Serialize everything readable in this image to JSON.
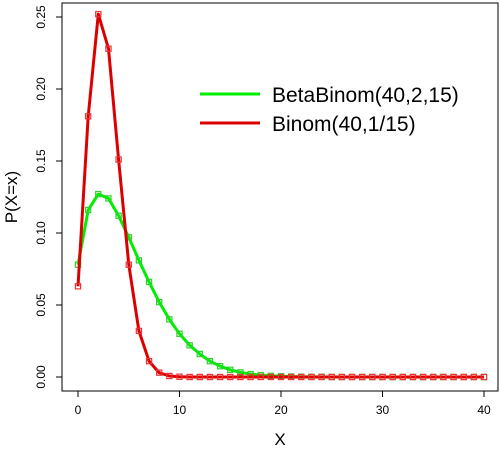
{
  "chart_data": {
    "type": "line",
    "title": "",
    "xlabel": "X",
    "ylabel": "P(X=x)",
    "xlim": [
      0,
      40
    ],
    "ylim": [
      0,
      0.25
    ],
    "x_ticks": [
      0,
      10,
      20,
      30,
      40
    ],
    "y_ticks": [
      0.0,
      0.05,
      0.1,
      0.15,
      0.2,
      0.25
    ],
    "y_tick_labels": [
      "0.00",
      "0.05",
      "0.10",
      "0.15",
      "0.20",
      "0.25"
    ],
    "grid": false,
    "legend_position": "top-right",
    "marker": "open-square",
    "x": [
      0,
      1,
      2,
      3,
      4,
      5,
      6,
      7,
      8,
      9,
      10,
      11,
      12,
      13,
      14,
      15,
      16,
      17,
      18,
      19,
      20,
      21,
      22,
      23,
      24,
      25,
      26,
      27,
      28,
      29,
      30,
      31,
      32,
      33,
      34,
      35,
      36,
      37,
      38,
      39,
      40
    ],
    "series": [
      {
        "name": "BetaBinom(40,2,15)",
        "color": "#00ee00",
        "marker_color": "#33cc33",
        "values": [
          0.078,
          0.116,
          0.127,
          0.124,
          0.112,
          0.097,
          0.081,
          0.066,
          0.052,
          0.04,
          0.03,
          0.022,
          0.016,
          0.011,
          0.0075,
          0.005,
          0.0032,
          0.002,
          0.0013,
          0.0008,
          0.0005,
          0.0003,
          0.0002,
          0.0001,
          0.0001,
          0.0,
          0.0,
          0.0,
          0.0,
          0.0,
          0.0,
          0.0,
          0.0,
          0.0,
          0.0,
          0.0,
          0.0,
          0.0,
          0.0,
          0.0,
          0.0
        ]
      },
      {
        "name": "Binom(40,1/15)",
        "color": "#dd0000",
        "marker_color": "#ee3333",
        "values": [
          0.063,
          0.181,
          0.252,
          0.228,
          0.151,
          0.078,
          0.032,
          0.011,
          0.003,
          0.0007,
          0.0002,
          0.0,
          0.0,
          0.0,
          0.0,
          0.0,
          0.0,
          0.0,
          0.0,
          0.0,
          0.0,
          0.0,
          0.0,
          0.0,
          0.0,
          0.0,
          0.0,
          0.0,
          0.0,
          0.0,
          0.0,
          0.0,
          0.0,
          0.0,
          0.0,
          0.0,
          0.0,
          0.0,
          0.0,
          0.0,
          0.0
        ]
      }
    ]
  }
}
